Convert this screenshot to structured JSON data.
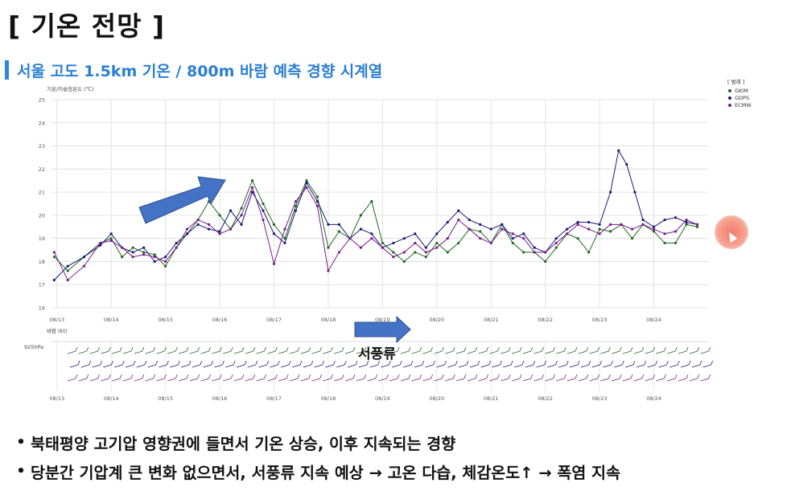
{
  "page_title": "[ 기온 전망 ]",
  "section_title": "서울 고도 1.5km 기온 / 800m 바람 예측 경향 시계열",
  "bullets": [
    "북태평양 고기압 영향권에 들면서 기온 상승, 이후 지속되는 경향",
    "당분간 기압계 큰 변화 없으면서, 서풍류 지속 예상 → 고온 다습, 체감온도↑ → 폭염 지속"
  ],
  "annotation_label": "서풍류",
  "colors": {
    "GKIM": "#1e6a1e",
    "GDPS": "#1a1a7a",
    "ECMW": "#7a1a8a",
    "accent": "#2e86de",
    "arrow": "#4472c4"
  },
  "chart_data": {
    "type": "line",
    "ylabel": "기온/이슬점온도 (℃)",
    "ylim": [
      16,
      25
    ],
    "yticks": [
      "25",
      "24",
      "23",
      "22",
      "21",
      "20",
      "19",
      "18",
      "17",
      "16"
    ],
    "x_tick_labels": [
      "08/13",
      "08/14",
      "08/15",
      "08/16",
      "08/17",
      "08/18",
      "08/19",
      "08/20",
      "08/21",
      "08/22",
      "08/23",
      "08/24"
    ],
    "legend_title": "[ 범례 ]",
    "legend_position": "top-right",
    "grid": true,
    "series": [
      {
        "name": "GKIM",
        "x": [
          12.95,
          13.2,
          13.5,
          13.8,
          14.0,
          14.2,
          14.4,
          14.6,
          14.8,
          15.0,
          15.2,
          15.4,
          15.6,
          15.8,
          16.0,
          16.2,
          16.4,
          16.6,
          16.8,
          17.0,
          17.2,
          17.4,
          17.6,
          17.8,
          18.0,
          18.2,
          18.4,
          18.6,
          18.8,
          19.0,
          19.2,
          19.4,
          19.6,
          19.8,
          20.0,
          20.2,
          20.4,
          20.6,
          20.8,
          21.0,
          21.2,
          21.4,
          21.6,
          21.8,
          22.0,
          22.2,
          22.4,
          22.6,
          22.8,
          23.0,
          23.2,
          23.4,
          23.6,
          23.8,
          24.0,
          24.2,
          24.4,
          24.6,
          24.8
        ],
        "values": [
          18.2,
          17.6,
          18.2,
          18.8,
          19.0,
          18.2,
          18.6,
          18.4,
          18.3,
          17.8,
          18.6,
          19.2,
          19.8,
          20.6,
          20.0,
          19.4,
          20.3,
          21.5,
          20.5,
          19.6,
          19.0,
          20.4,
          21.5,
          20.8,
          18.6,
          19.3,
          19.0,
          20.0,
          20.6,
          18.8,
          18.4,
          18.0,
          18.4,
          18.2,
          18.8,
          18.4,
          18.8,
          19.4,
          19.3,
          18.8,
          19.6,
          18.8,
          18.4,
          18.4,
          18.0,
          18.6,
          19.2,
          19.0,
          18.4,
          19.4,
          19.3,
          19.6,
          19.0,
          19.6,
          19.3,
          18.8,
          18.8,
          19.6,
          19.5
        ]
      },
      {
        "name": "GDPS",
        "x": [
          12.95,
          13.2,
          13.5,
          13.8,
          14.0,
          14.2,
          14.4,
          14.6,
          14.8,
          15.0,
          15.2,
          15.4,
          15.6,
          15.8,
          16.0,
          16.2,
          16.4,
          16.6,
          16.8,
          17.0,
          17.2,
          17.4,
          17.6,
          17.8,
          18.0,
          18.2,
          18.4,
          18.6,
          18.8,
          19.0,
          19.2,
          19.4,
          19.6,
          19.8,
          20.0,
          20.2,
          20.4,
          20.6,
          20.8,
          21.0,
          21.2,
          21.4,
          21.6,
          21.8,
          22.0,
          22.2,
          22.4,
          22.6,
          22.8,
          23.0,
          23.2,
          23.35,
          23.5,
          23.65,
          23.8,
          24.0,
          24.2,
          24.4,
          24.6,
          24.8
        ],
        "values": [
          17.2,
          17.8,
          18.2,
          18.7,
          19.2,
          18.6,
          18.4,
          18.6,
          18.0,
          18.2,
          18.8,
          19.2,
          19.6,
          19.4,
          19.3,
          20.2,
          19.6,
          21.0,
          20.2,
          19.2,
          18.8,
          20.2,
          21.4,
          20.6,
          19.6,
          19.6,
          19.0,
          19.4,
          19.2,
          18.6,
          18.8,
          19.0,
          19.2,
          18.6,
          19.2,
          19.7,
          20.2,
          19.8,
          19.6,
          19.4,
          19.6,
          19.0,
          19.2,
          18.6,
          18.4,
          19.0,
          19.4,
          19.7,
          19.7,
          19.6,
          21.0,
          22.8,
          22.2,
          21.0,
          19.8,
          19.5,
          19.8,
          19.9,
          19.7,
          19.6
        ]
      },
      {
        "name": "ECMW",
        "x": [
          12.95,
          13.2,
          13.5,
          13.8,
          14.0,
          14.2,
          14.4,
          14.6,
          14.8,
          15.0,
          15.2,
          15.4,
          15.6,
          15.8,
          16.0,
          16.2,
          16.4,
          16.6,
          16.8,
          17.0,
          17.2,
          17.4,
          17.6,
          17.8,
          18.0,
          18.2,
          18.4,
          18.6,
          18.8,
          19.0,
          19.2,
          19.4,
          19.6,
          19.8,
          20.0,
          20.2,
          20.4,
          20.6,
          20.8,
          21.0,
          21.2,
          21.4,
          21.6,
          21.8,
          22.0,
          22.2,
          22.4,
          22.6,
          22.8,
          23.0,
          23.2,
          23.4,
          23.6,
          23.8,
          24.0,
          24.2,
          24.4,
          24.6,
          24.8
        ],
        "values": [
          18.4,
          17.2,
          17.8,
          18.8,
          18.9,
          18.6,
          18.2,
          18.3,
          18.2,
          18.0,
          18.6,
          19.4,
          19.8,
          19.6,
          19.2,
          19.4,
          20.0,
          21.2,
          19.8,
          17.9,
          19.4,
          20.6,
          21.2,
          20.4,
          17.6,
          18.4,
          19.0,
          18.6,
          19.0,
          18.6,
          18.2,
          18.4,
          18.8,
          18.4,
          18.6,
          19.0,
          19.8,
          19.4,
          19.0,
          18.8,
          19.4,
          19.2,
          19.0,
          18.4,
          18.4,
          18.8,
          19.2,
          19.6,
          19.4,
          19.2,
          19.6,
          19.6,
          19.4,
          19.6,
          19.4,
          19.2,
          19.3,
          19.8,
          19.6
        ]
      }
    ],
    "wind_label": "바람 (kt)",
    "wind_level": "925hPa"
  }
}
